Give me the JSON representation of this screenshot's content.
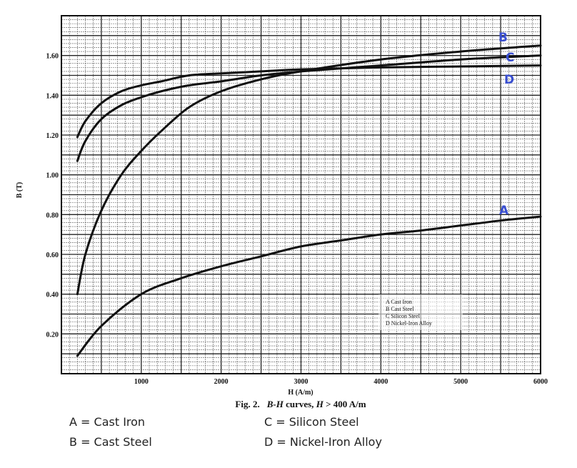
{
  "chart_data": {
    "type": "line",
    "title": "Fig. 2.   B-H curves, H > 400 A/m",
    "caption_parts": {
      "fig": "Fig. 2.",
      "bh": "B-H",
      "rest": " curves, ",
      "h": "H",
      "cond": " > 400 A/m"
    },
    "xlabel": "H (A/m)",
    "ylabel": "B (T)",
    "xlim": [
      0,
      6000
    ],
    "ylim": [
      0,
      1.8
    ],
    "xticks": [
      1000,
      2000,
      3000,
      4000,
      5000,
      6000
    ],
    "xtick_labels": [
      "1000",
      "2000",
      "3000",
      "4000",
      "5000",
      "6000"
    ],
    "yticks": [
      0.2,
      0.4,
      0.6,
      0.8,
      1.0,
      1.2,
      1.4,
      1.6
    ],
    "ytick_labels": [
      "0.20",
      "0.40",
      "0.60",
      "0.80",
      "1.00",
      "1.20",
      "1.40",
      "1.60"
    ],
    "grid": true,
    "series": [
      {
        "key": "A",
        "name": "Cast Iron",
        "x": [
          200,
          500,
          1000,
          1500,
          2000,
          2500,
          3000,
          3500,
          4000,
          4500,
          5000,
          5500,
          6000
        ],
        "y": [
          0.09,
          0.24,
          0.4,
          0.48,
          0.54,
          0.59,
          0.64,
          0.67,
          0.7,
          0.72,
          0.745,
          0.77,
          0.79
        ]
      },
      {
        "key": "B",
        "name": "Cast Steel",
        "x": [
          200,
          300,
          500,
          750,
          1000,
          1250,
          1600,
          2000,
          2500,
          3000,
          4000,
          5000,
          6000
        ],
        "y": [
          0.4,
          0.6,
          0.82,
          1.0,
          1.12,
          1.22,
          1.34,
          1.42,
          1.48,
          1.52,
          1.58,
          1.62,
          1.65
        ]
      },
      {
        "key": "C",
        "name": "Silicon Steel",
        "x": [
          200,
          300,
          500,
          750,
          1000,
          1250,
          1600,
          2000,
          2500,
          3000,
          4000,
          5000,
          6000
        ],
        "y": [
          1.07,
          1.17,
          1.28,
          1.35,
          1.39,
          1.42,
          1.45,
          1.47,
          1.5,
          1.52,
          1.55,
          1.58,
          1.6
        ]
      },
      {
        "key": "D",
        "name": "Nickel-Iron Alloy",
        "x": [
          200,
          300,
          500,
          750,
          1000,
          1250,
          1600,
          2000,
          2500,
          3000,
          4000,
          5000,
          6000
        ],
        "y": [
          1.19,
          1.27,
          1.36,
          1.42,
          1.45,
          1.47,
          1.5,
          1.51,
          1.52,
          1.53,
          1.54,
          1.545,
          1.55
        ]
      }
    ],
    "inner_legend": [
      "A   Cast Iron",
      "B   Cast Steel",
      "C   Silicon Steel",
      "D   Nickel-Iron Alloy"
    ],
    "annotations": [
      {
        "text": "B",
        "color": "#3a4fd0",
        "near_series": "B"
      },
      {
        "text": "C",
        "color": "#3a4fd0",
        "near_series": "C"
      },
      {
        "text": "D",
        "color": "#3a4fd0",
        "near_series": "D"
      },
      {
        "text": "A",
        "color": "#3a4fd0",
        "near_series": "A"
      }
    ],
    "legend_position": "lower right (inside plot)"
  },
  "key": {
    "a": "A = Cast Iron",
    "b": "B = Cast Steel",
    "c": "C = Silicon Steel",
    "d": "D = Nickel-Iron Alloy"
  },
  "colors": {
    "curve": "#111111",
    "grid_major": "#222222",
    "grid_minor": "#555555",
    "label_blue": "#3a4fd0"
  }
}
